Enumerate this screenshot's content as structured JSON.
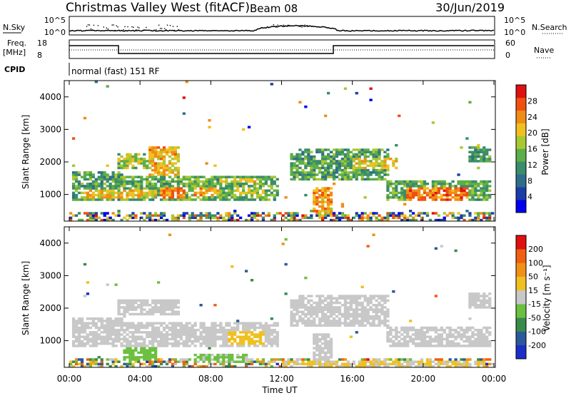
{
  "header": {
    "station": "Christmas Valley West (fitACF)",
    "beam": "Beam 08",
    "date": "30/Jun/2019"
  },
  "strip_labels": {
    "nsky": "N.Sky",
    "nsky_ticks": [
      "10^5",
      "10^0"
    ],
    "nsearch": "N.Search",
    "nsearch_ticks": [
      "10^5",
      "10^0"
    ],
    "freq_line1": "Freq.",
    "freq_line2": "[MHz]",
    "freq_ticks": [
      "18",
      "8"
    ],
    "nave": "Nave",
    "nave_ticks": [
      "60",
      "0"
    ],
    "cpid": "CPID",
    "mode": "normal (fast) 151 RF"
  },
  "chart_data": [
    {
      "type": "heatmap",
      "name": "power",
      "ylabel": "Slant Range [km]",
      "yticks": [
        "1000",
        "2000",
        "3000",
        "4000"
      ],
      "ylim": [
        180,
        4500
      ],
      "xlim": [
        0,
        24
      ],
      "colorbar": {
        "label": "Power [dB]",
        "ticks": [
          "4",
          "8",
          "12",
          "16",
          "20",
          "24",
          "28"
        ],
        "range": [
          0,
          32
        ],
        "colors": [
          "#0000ee",
          "#1c3ca8",
          "#2f6e8a",
          "#3a8c6a",
          "#5cae48",
          "#a8c832",
          "#f0c020",
          "#f08c18",
          "#f05010",
          "#e01010"
        ]
      },
      "echo_regions": [
        {
          "t": [
            0.2,
            3.0
          ],
          "r": [
            800,
            1700
          ],
          "p": 13
        },
        {
          "t": [
            0.8,
            3.0
          ],
          "r": [
            900,
            1150
          ],
          "p": 21
        },
        {
          "t": [
            2.8,
            6.2
          ],
          "r": [
            1800,
            2300
          ],
          "p": 17
        },
        {
          "t": [
            4.5,
            6.2
          ],
          "r": [
            1600,
            2500
          ],
          "p": 22
        },
        {
          "t": [
            3.0,
            11.8
          ],
          "r": [
            800,
            1550
          ],
          "p": 14
        },
        {
          "t": [
            2.8,
            5.0
          ],
          "r": [
            850,
            1150
          ],
          "p": 20
        },
        {
          "t": [
            5.2,
            6.5
          ],
          "r": [
            850,
            1200
          ],
          "p": 24
        },
        {
          "t": [
            7.0,
            8.5
          ],
          "r": [
            950,
            1200
          ],
          "p": 22
        },
        {
          "t": [
            8.5,
            10.5
          ],
          "r": [
            1350,
            1500
          ],
          "p": 19
        },
        {
          "t": [
            9.5,
            11.0
          ],
          "r": [
            950,
            1200
          ],
          "p": 18
        },
        {
          "t": [
            12.5,
            13.5
          ],
          "r": [
            1400,
            2300
          ],
          "p": 13
        },
        {
          "t": [
            13.8,
            14.8
          ],
          "r": [
            400,
            1200
          ],
          "p": 23
        },
        {
          "t": [
            13.0,
            18.0
          ],
          "r": [
            1400,
            2400
          ],
          "p": 13
        },
        {
          "t": [
            16.0,
            18.5
          ],
          "r": [
            1800,
            2100
          ],
          "p": 20
        },
        {
          "t": [
            18.0,
            23.8
          ],
          "r": [
            800,
            1400
          ],
          "p": 14
        },
        {
          "t": [
            19.0,
            22.5
          ],
          "r": [
            800,
            1200
          ],
          "p": 25
        },
        {
          "t": [
            22.5,
            23.8
          ],
          "r": [
            2000,
            2500
          ],
          "p": 13
        }
      ]
    },
    {
      "type": "heatmap",
      "name": "velocity",
      "ylabel": "Slant Range [km]",
      "yticks": [
        "1000",
        "2000",
        "3000",
        "4000"
      ],
      "ylim": [
        180,
        4500
      ],
      "xlim": [
        0,
        24
      ],
      "xticks": [
        "00:00",
        "04:00",
        "08:00",
        "12:00",
        "16:00",
        "20:00",
        "00:00"
      ],
      "xlabel": "Time UT",
      "colorbar": {
        "label": "Velocity [m s⁻¹]",
        "ticks": [
          "200",
          "100",
          "50",
          "15",
          "-15",
          "-50",
          "-100",
          "-200"
        ],
        "range": [
          -250,
          250
        ],
        "colors": [
          "#1c2ec8",
          "#2a5a9a",
          "#3a8a4a",
          "#6cc040",
          "#c8c8c8",
          "#f0c020",
          "#f09018",
          "#f06010",
          "#e01010"
        ]
      },
      "echo_regions": [
        {
          "t": [
            0.2,
            3.0
          ],
          "r": [
            800,
            1700
          ],
          "v": 0
        },
        {
          "t": [
            2.8,
            6.2
          ],
          "r": [
            1800,
            2300
          ],
          "v": 0
        },
        {
          "t": [
            3.0,
            11.8
          ],
          "r": [
            800,
            1550
          ],
          "v": 0
        },
        {
          "t": [
            3.0,
            5.0
          ],
          "r": [
            400,
            800
          ],
          "v": -60
        },
        {
          "t": [
            7.0,
            10.0
          ],
          "r": [
            300,
            600
          ],
          "v": -40
        },
        {
          "t": [
            9.0,
            11.0
          ],
          "r": [
            900,
            1300
          ],
          "v": 60
        },
        {
          "t": [
            12.5,
            13.5
          ],
          "r": [
            1400,
            2300
          ],
          "v": 0
        },
        {
          "t": [
            13.8,
            14.8
          ],
          "r": [
            400,
            1200
          ],
          "v": 0
        },
        {
          "t": [
            13.0,
            18.0
          ],
          "r": [
            1400,
            2400
          ],
          "v": 0
        },
        {
          "t": [
            18.0,
            23.8
          ],
          "r": [
            800,
            1400
          ],
          "v": 0
        },
        {
          "t": [
            22.5,
            23.8
          ],
          "r": [
            2000,
            2500
          ],
          "v": 0
        },
        {
          "t": [
            12.0,
            23.5
          ],
          "r": [
            200,
            400
          ],
          "v": 30
        }
      ]
    }
  ]
}
